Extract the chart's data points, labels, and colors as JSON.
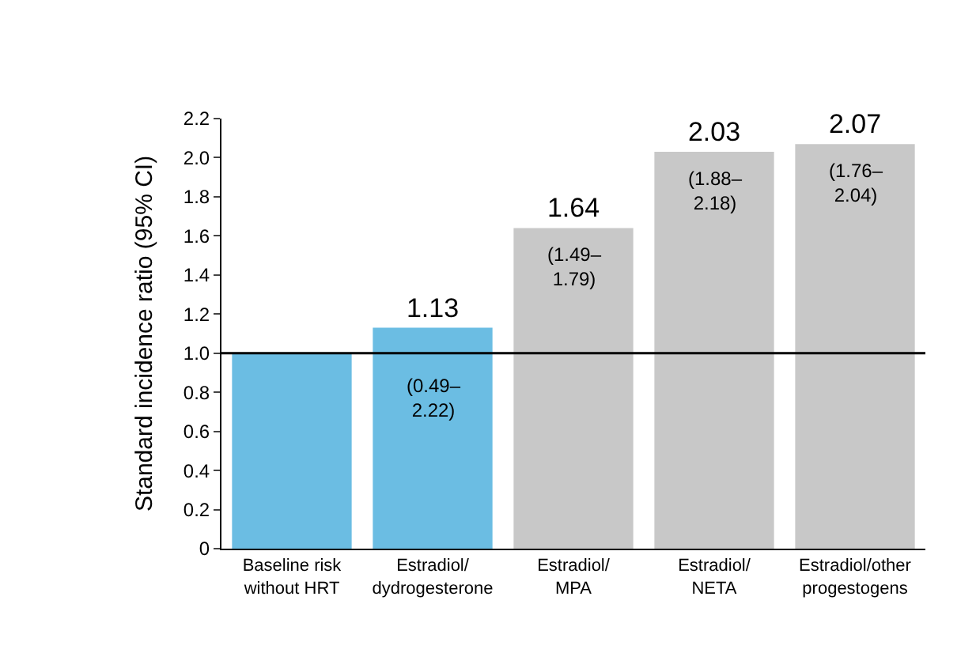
{
  "chart_data": {
    "type": "bar",
    "ylabel": "Standard incidence ratio (95% CI)",
    "categories": [
      "Baseline risk\nwithout HRT",
      "Estradiol/\ndydrogesterone",
      "Estradiol/\nMPA",
      "Estradiol/\nNETA",
      "Estradiol/other\nprogestogens"
    ],
    "values": [
      1.0,
      1.13,
      1.64,
      2.03,
      2.07
    ],
    "colors": [
      "#6bbde3",
      "#6bbde3",
      "#c8c8c8",
      "#c8c8c8",
      "#c8c8c8"
    ],
    "value_labels": [
      null,
      "1.13",
      "1.64",
      "2.03",
      "2.07"
    ],
    "ylim": [
      0,
      2.2
    ],
    "yticks": [
      0,
      0.2,
      0.4,
      0.6,
      0.8,
      {
        "value": 1,
        "label": "1.0"
      },
      1.2,
      1.4,
      1.6,
      1.8,
      {
        "value": 2,
        "label": "2.0"
      },
      2.2
    ],
    "ref_lines": [
      {
        "axis": "y",
        "value": 1.0,
        "color": "#000000"
      }
    ],
    "annotations": [
      {
        "text": "(0.49–\n2.22)",
        "x": "Estradiol/\ndydrogesterone",
        "y": 0.97
      },
      {
        "text": "(1.49–\n1.79)",
        "x": "Estradiol/\nMPA",
        "y": 1.64
      },
      {
        "text": "(1.88–\n2.18)",
        "x": "Estradiol/\nNETA",
        "y": 2.03
      },
      {
        "text": "(1.76–\n2.04)",
        "x": "Estradiol/other\nprogestogens",
        "y": 2.07
      }
    ]
  }
}
